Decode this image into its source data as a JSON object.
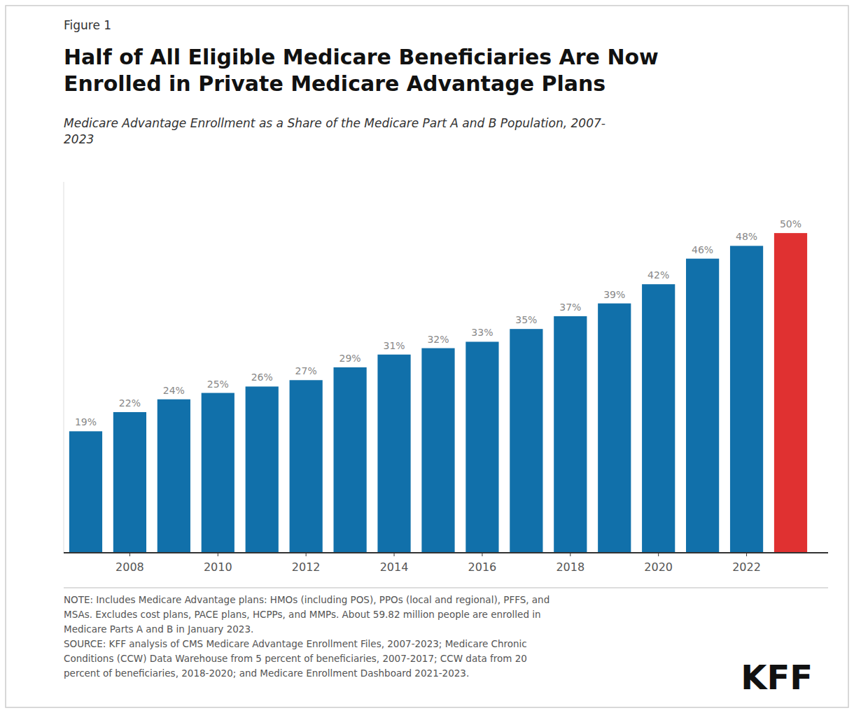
{
  "chart_data": {
    "type": "bar",
    "title": "Half of All Eligible Medicare Beneficiaries Are Now\nEnrolled in Private Medicare Advantage Plans",
    "subtitle": "Medicare Advantage Enrollment as a Share of the Medicare Part A and B Population, 2007-\n2023",
    "annotations": [
      "Figure 1",
      "NOTE: Includes Medicare Advantage plans: HMOs (including POS), PPOs (local and regional), PFFS, and\nMSAs. Excludes cost plans, PACE plans, HCPPs, and MMPs. About 59.82 million people are enrolled in\nMedicare Parts A and B in January 2023.\nSOURCE: KFF analysis of CMS Medicare Advantage Enrollment Files, 2007-2023; Medicare Chronic\nConditions (CCW) Data Warehouse from 5 percent of beneficiaries, 2007-2017; CCW data from 20\npercent of beneficiaries, 2018-2020; and Medicare Enrollment Dashboard 2021-2023.",
      "KFF"
    ],
    "x": [
      2007,
      2008,
      2009,
      2010,
      2011,
      2012,
      2013,
      2014,
      2015,
      2016,
      2017,
      2018,
      2019,
      2020,
      2021,
      2022,
      2023
    ],
    "values": [
      19,
      22,
      24,
      25,
      26,
      27,
      29,
      31,
      32,
      33,
      35,
      37,
      39,
      42,
      46,
      48,
      50
    ],
    "value_labels": [
      "19%",
      "22%",
      "24%",
      "25%",
      "26%",
      "27%",
      "29%",
      "31%",
      "32%",
      "33%",
      "35%",
      "37%",
      "39%",
      "42%",
      "46%",
      "48%",
      "50%"
    ],
    "colors": [
      "#1170aa",
      "#1170aa",
      "#1170aa",
      "#1170aa",
      "#1170aa",
      "#1170aa",
      "#1170aa",
      "#1170aa",
      "#1170aa",
      "#1170aa",
      "#1170aa",
      "#1170aa",
      "#1170aa",
      "#1170aa",
      "#1170aa",
      "#1170aa",
      "#e03131"
    ],
    "xlim": [
      2006.5,
      2023.85
    ],
    "xticks": [
      2008,
      2010,
      2012,
      2014,
      2016,
      2018,
      2020,
      2022
    ],
    "ylim": [
      0,
      58
    ],
    "tick_labels": "x",
    "data_labels": true,
    "grid": false
  }
}
